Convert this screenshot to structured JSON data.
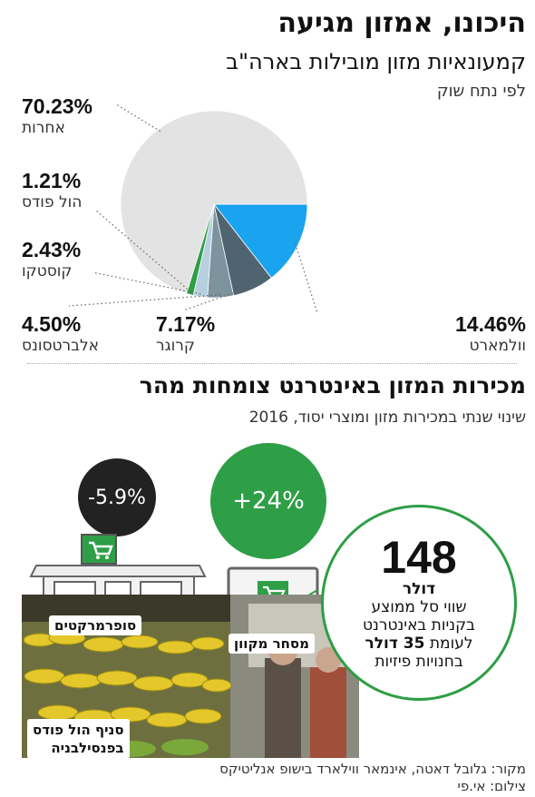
{
  "header": {
    "title": "היכונו, אמזון מגיעה",
    "subtitle": "קמעונאיות מזון מובילות בארה\"ב",
    "note": "לפי נתח שוק"
  },
  "chart_data": {
    "type": "pie",
    "title": "קמעונאיות מזון מובילות בארה\"ב",
    "subtitle": "לפי נתח שוק",
    "slices": [
      {
        "name": "וולמארט",
        "value": 14.46,
        "label": "14.46%",
        "color": "#1aa3ee"
      },
      {
        "name": "קרוגר",
        "value": 7.17,
        "label": "7.17%",
        "color": "#4f6470"
      },
      {
        "name": "אלברטסונס",
        "value": 4.5,
        "label": "4.50%",
        "color": "#7d939d"
      },
      {
        "name": "קוסטקו",
        "value": 2.43,
        "label": "2.43%",
        "color": "#b6d0e0"
      },
      {
        "name": "הול פודס",
        "value": 1.21,
        "label": "1.21%",
        "color": "#2e9e47"
      },
      {
        "name": "אחרות",
        "value": 70.23,
        "label": "70.23%",
        "color": "#e3e3e3"
      }
    ]
  },
  "section2": {
    "title": "מכירות המזון באינטרנט צומחות מהר",
    "subtitle": "שינוי שנתי במכירות מזון ומוצרי יסוד, 2016",
    "supermarkets": {
      "value": "-5.9%",
      "label": "סופרמרקטים",
      "color": "#222222"
    },
    "online": {
      "value": "+24%",
      "label": "מסחר מקוון",
      "color": "#2e9e47"
    },
    "callout": {
      "number": "148",
      "unit": "דולר",
      "line1": "שווי סל ממוצע",
      "line2": "בקניות באינטרנט",
      "line3_pre": "לעומת ",
      "line3_bold": "35 דולר",
      "line4": "בחנויות פיזיות"
    },
    "photo_caption_1": "סניף הול פודס",
    "photo_caption_2": "בפנסילבניה"
  },
  "footer": {
    "source": "מקור: גלובל דאטה, אינמאר ווילארד בישופ אנליטיקס",
    "photo_credit": "צילום: אי.פי"
  }
}
